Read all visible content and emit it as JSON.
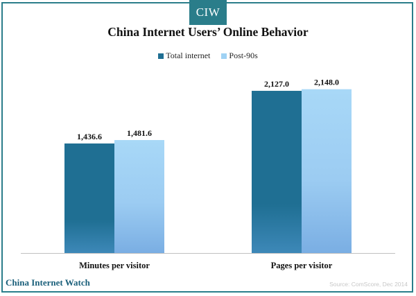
{
  "brand": {
    "badge": "CIW",
    "footer": "China Internet Watch"
  },
  "source": "Source: ComScore, Dec 2014",
  "colors": {
    "frame": "#2a7d8a",
    "series1": "#1f6f93",
    "series2": "#9fd2f4",
    "series2_bottom": "#7aaee3"
  },
  "chart_data": {
    "type": "bar",
    "title": "China Internet Users’ Online Behavior",
    "categories": [
      "Minutes per visitor",
      "Pages per visitor"
    ],
    "series": [
      {
        "name": "Total internet",
        "values": [
          1436.6,
          2127.0
        ],
        "labels": [
          "1,436.6",
          "2,127.0"
        ]
      },
      {
        "name": "Post-90s",
        "values": [
          1481.6,
          2148.0
        ],
        "labels": [
          "1,481.6",
          "2,148.0"
        ]
      }
    ],
    "ylim": [
      0,
      2500
    ],
    "grid": false,
    "legend_position": "top-center"
  }
}
